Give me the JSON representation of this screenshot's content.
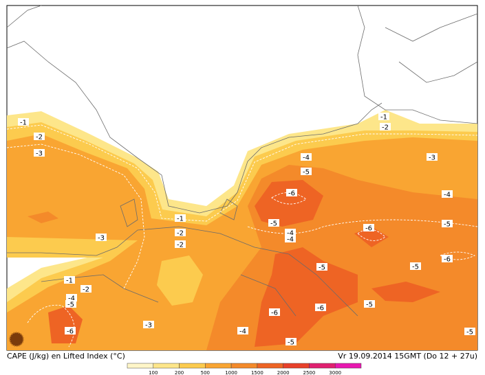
{
  "map": {
    "contour_labels": [
      -1,
      -2,
      -3,
      -3,
      -1,
      -2,
      -2,
      -1,
      -2,
      -4,
      -5,
      -6,
      -3,
      -4,
      -5,
      -6,
      -6,
      -5,
      -5,
      -5,
      -6,
      -5,
      -6,
      -4,
      -3,
      -1,
      -2,
      -4,
      -5,
      -6,
      -5,
      -4,
      -4,
      -5
    ],
    "footer_left": "CAPE (J/kg) en Lifted Index (°C)",
    "footer_right": "Vr 19.09.2014 15GMT (Do 12 + 27u)",
    "colorbar": {
      "labels": [
        100,
        200,
        500,
        1000,
        1500,
        2000,
        2500,
        3000
      ],
      "colors": [
        "#fff6c8",
        "#fde68a",
        "#fccb4e",
        "#f9a532",
        "#f48a2a",
        "#ee6424",
        "#e8402a",
        "#e02070",
        "#e818b0"
      ]
    }
  }
}
